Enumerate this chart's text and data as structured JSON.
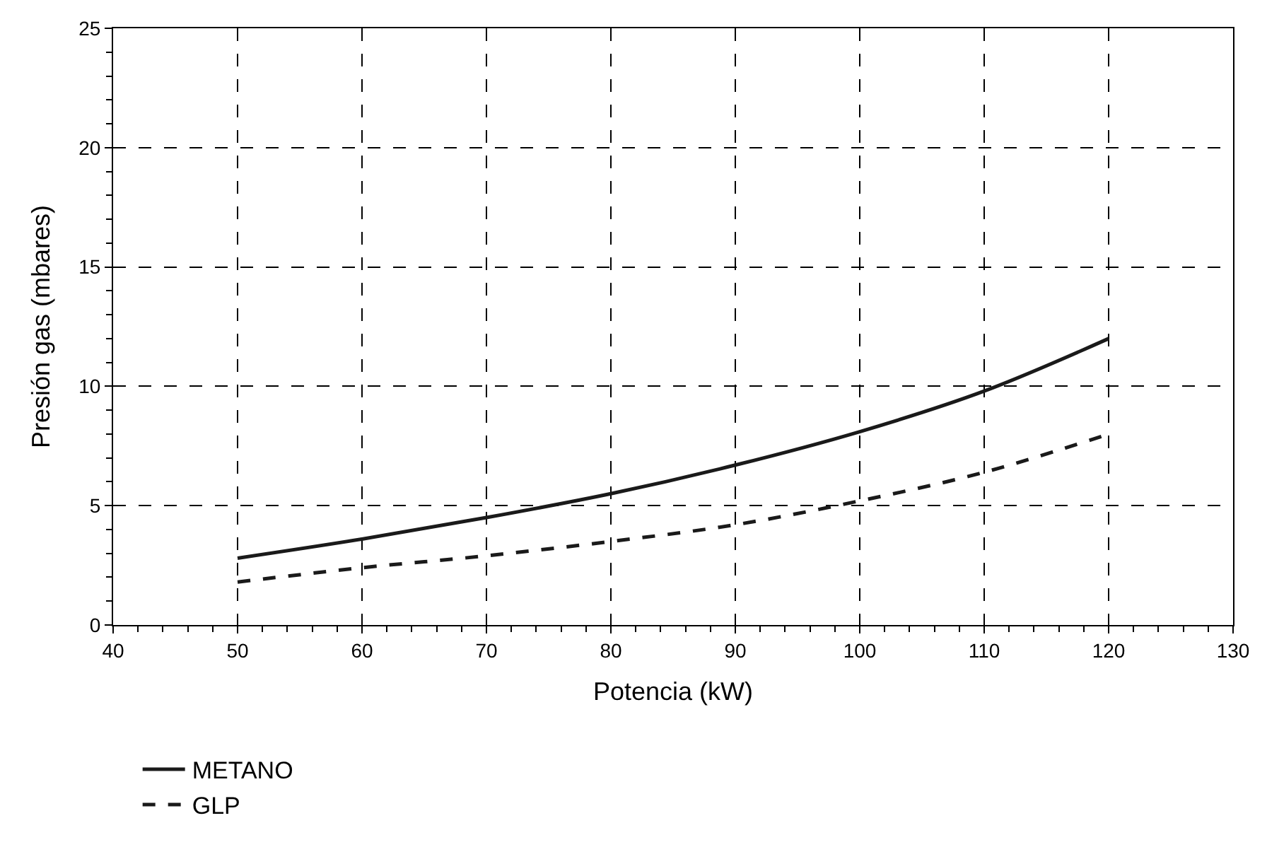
{
  "chart_data": {
    "type": "line",
    "xlabel": "Potencia (kW)",
    "ylabel": "Presión gas (mbares)",
    "x": [
      50,
      60,
      70,
      80,
      90,
      100,
      110,
      120
    ],
    "series": [
      {
        "name": "METANO",
        "color": "#1a1a1a",
        "line_style": "solid",
        "values": [
          2.8,
          3.6,
          4.5,
          5.5,
          6.7,
          8.1,
          9.8,
          12.0
        ]
      },
      {
        "name": "GLP",
        "color": "#1a1a1a",
        "line_style": "dashed",
        "values": [
          1.8,
          2.4,
          2.9,
          3.5,
          4.2,
          5.2,
          6.4,
          8.0
        ]
      }
    ],
    "xlim": [
      40,
      130
    ],
    "xticks": [
      40,
      50,
      60,
      70,
      80,
      90,
      100,
      110,
      120,
      130
    ],
    "ylim": [
      0,
      25
    ],
    "yticks": [
      0,
      5,
      10,
      15,
      20,
      25
    ],
    "grid": true,
    "legend": "bottom left",
    "marker": "none"
  }
}
